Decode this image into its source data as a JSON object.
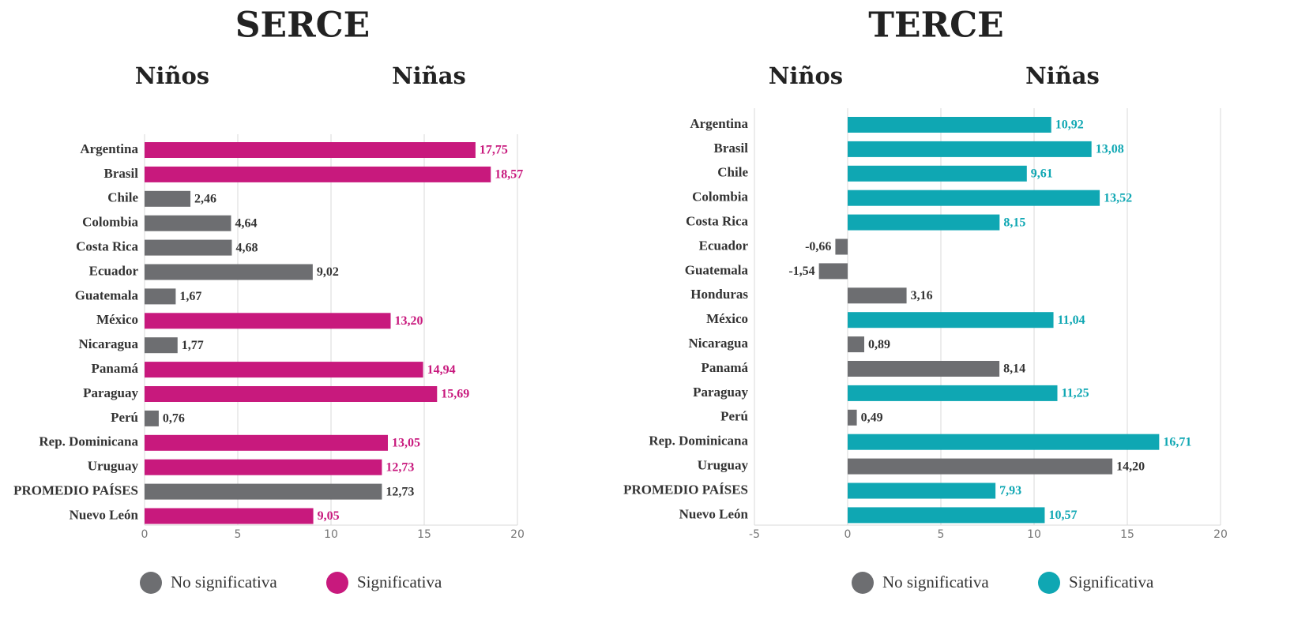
{
  "chart_data": [
    {
      "type": "bar",
      "title": "SERCE",
      "subtitles": [
        "Niños",
        "Niñas"
      ],
      "categories": [
        "Argentina",
        "Brasil",
        "Chile",
        "Colombia",
        "Costa Rica",
        "Ecuador",
        "Guatemala",
        "México",
        "Nicaragua",
        "Panamá",
        "Paraguay",
        "Perú",
        "Rep. Dominicana",
        "Uruguay",
        "PROMEDIO PAÍSES",
        "Nuevo León"
      ],
      "values": [
        17.75,
        18.57,
        2.46,
        4.64,
        4.68,
        9.02,
        1.67,
        13.2,
        1.77,
        14.94,
        15.69,
        0.76,
        13.05,
        12.73,
        12.73,
        9.05
      ],
      "value_labels": [
        "17,75",
        "18,57",
        "2,46",
        "4,64",
        "4,68",
        "9,02",
        "1,67",
        "13,20",
        "1,77",
        "14,94",
        "15,69",
        "0,76",
        "13,05",
        "12,73",
        "12,73",
        "9,05"
      ],
      "colors": [
        "#c8197d",
        "#c8197d",
        "#6d6e71",
        "#6d6e71",
        "#6d6e71",
        "#6d6e71",
        "#6d6e71",
        "#c8197d",
        "#6d6e71",
        "#c8197d",
        "#c8197d",
        "#6d6e71",
        "#c8197d",
        "#c8197d",
        "#6d6e71",
        "#c8197d"
      ],
      "xlim": [
        0,
        20
      ],
      "xticks": [
        0,
        5,
        10,
        15,
        20
      ],
      "grid": true,
      "legend": [
        {
          "name": "No significativa",
          "color": "#6d6e71"
        },
        {
          "name": "Significativa",
          "color": "#c8197d"
        }
      ]
    },
    {
      "type": "bar",
      "title": "TERCE",
      "subtitles": [
        "Niños",
        "Niñas"
      ],
      "categories": [
        "Argentina",
        "Brasil",
        "Chile",
        "Colombia",
        "Costa Rica",
        "Ecuador",
        "Guatemala",
        "Honduras",
        "México",
        "Nicaragua",
        "Panamá",
        "Paraguay",
        "Perú",
        "Rep. Dominicana",
        "Uruguay",
        "PROMEDIO PAÍSES",
        "Nuevo León"
      ],
      "values": [
        10.92,
        13.08,
        9.61,
        13.52,
        8.15,
        -0.66,
        -1.54,
        3.16,
        11.04,
        0.89,
        8.14,
        11.25,
        0.49,
        16.71,
        14.2,
        7.93,
        10.57
      ],
      "value_labels": [
        "10,92",
        "13,08",
        "9,61",
        "13,52",
        "8,15",
        "-0,66",
        "-1,54",
        "3,16",
        "11,04",
        "0,89",
        "8,14",
        "11,25",
        "0,49",
        "16,71",
        "14,20",
        "7,93",
        "10,57"
      ],
      "colors": [
        "#0fa7b3",
        "#0fa7b3",
        "#0fa7b3",
        "#0fa7b3",
        "#0fa7b3",
        "#6d6e71",
        "#6d6e71",
        "#6d6e71",
        "#0fa7b3",
        "#6d6e71",
        "#6d6e71",
        "#0fa7b3",
        "#6d6e71",
        "#0fa7b3",
        "#6d6e71",
        "#0fa7b3",
        "#0fa7b3"
      ],
      "xlim": [
        -5,
        20
      ],
      "xticks": [
        -5,
        0,
        5,
        10,
        15,
        20
      ],
      "grid": true,
      "legend": [
        {
          "name": "No significativa",
          "color": "#6d6e71"
        },
        {
          "name": "Significativa",
          "color": "#0fa7b3"
        }
      ]
    }
  ]
}
